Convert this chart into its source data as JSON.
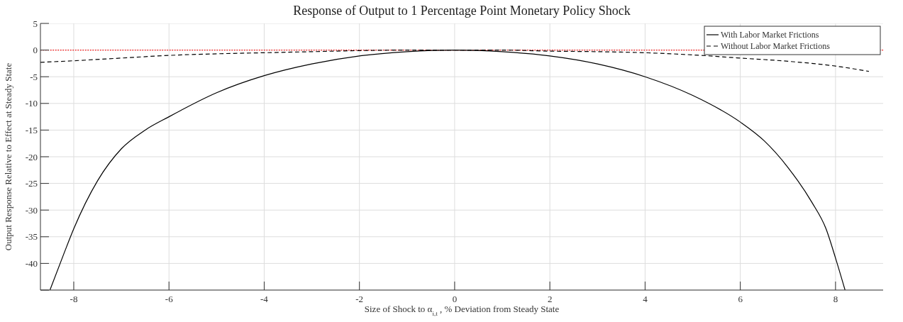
{
  "chart_data": {
    "type": "line",
    "title": "Response of Output to 1 Percentage Point Monetary Policy Shock",
    "xlabel": "Size of Shock to α$_{i,t}$, % Deviation from Steady State",
    "ylabel": "Output Response Relative to Effect at Steady State",
    "xlim": [
      -8.7,
      9
    ],
    "xticks": [
      -8,
      -6,
      -4,
      -2,
      0,
      2,
      4,
      6,
      8
    ],
    "ylim": [
      -45,
      5
    ],
    "yticks": [
      {
        "value": -45,
        "label": null
      },
      -40,
      -35,
      -30,
      -25,
      -20,
      -15,
      -10,
      -5,
      0,
      5
    ],
    "grid": true,
    "legend": "top right",
    "series": [
      {
        "name": "With Labor Market Frictions",
        "color": "#000000",
        "line_style": "solid",
        "x": [
          -8.5,
          -8.2,
          -8,
          -7.5,
          -7,
          -6.5,
          -6,
          -5,
          -4,
          -3,
          -2,
          -1,
          0,
          1,
          2,
          3,
          4,
          5,
          6,
          6.5,
          7,
          7.5,
          7.8,
          8,
          8.2
        ],
        "values": [
          -45,
          -38,
          -33.5,
          -24.5,
          -18.5,
          -15,
          -12.5,
          -8,
          -4.8,
          -2.6,
          -1.1,
          -0.3,
          0,
          -0.3,
          -1.1,
          -2.6,
          -5,
          -8.5,
          -13.5,
          -17,
          -22,
          -28.5,
          -33.5,
          -39,
          -45
        ]
      },
      {
        "name": "Without Labor Market Frictions",
        "color": "#000000",
        "line_style": "dashed",
        "x": [
          -8.7,
          -8,
          -7,
          -6,
          -5,
          -4,
          -3,
          -2,
          -1,
          0,
          1,
          2,
          3,
          4,
          5,
          6,
          7,
          8,
          8.7
        ],
        "values": [
          -2.3,
          -2,
          -1.5,
          -1,
          -0.7,
          -0.5,
          -0.3,
          -0.1,
          0,
          0,
          0,
          -0.2,
          -0.3,
          -0.5,
          -0.9,
          -1.5,
          -2.1,
          -3,
          -4
        ]
      }
    ],
    "ref_lines": [
      {
        "axis": "y",
        "value": 0,
        "color": "#ff0000",
        "line_style": "dotted"
      }
    ]
  }
}
